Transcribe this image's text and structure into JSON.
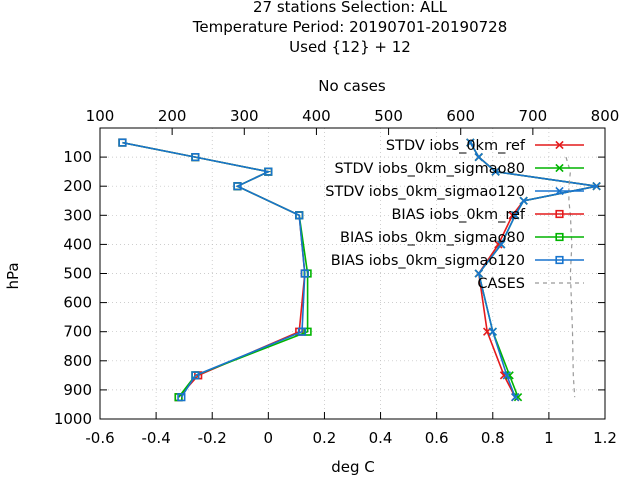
{
  "chart_data": {
    "type": "line",
    "title_lines": [
      "27 stations Selection: ALL",
      "Temperature  Period: 20190701-20190728",
      "Used {12} + 12"
    ],
    "xlabel": "deg C",
    "ylabel": "hPa",
    "x2label": "No cases",
    "xlim": [
      -0.6,
      1.2
    ],
    "ylim": [
      1000,
      0
    ],
    "x2lim": [
      100,
      800
    ],
    "x_ticks": [
      -0.6,
      -0.4,
      -0.2,
      0,
      0.2,
      0.4,
      0.6,
      0.8,
      1,
      1.2
    ],
    "x_tick_labels": [
      "-0.6",
      "-0.4",
      "-0.2",
      "0",
      "0.2",
      "0.4",
      "0.6",
      "0.8",
      "1",
      "1.2"
    ],
    "y_ticks": [
      100,
      200,
      300,
      400,
      500,
      600,
      700,
      800,
      900,
      1000
    ],
    "y_tick_labels": [
      "100",
      "200",
      "300",
      "400",
      "500",
      "600",
      "700",
      "800",
      "900",
      "1000"
    ],
    "x2_ticks": [
      100,
      200,
      300,
      400,
      500,
      600,
      700,
      800
    ],
    "x2_tick_labels": [
      "100",
      "200",
      "300",
      "400",
      "500",
      "600",
      "700",
      "800"
    ],
    "grid": true,
    "legend_position": "top-right",
    "y": [
      50,
      100,
      150,
      200,
      250,
      300,
      400,
      500,
      700,
      850,
      925
    ],
    "series": [
      {
        "name": "STDV iobs_0km_ref",
        "color": "#e41a1c",
        "marker": "x",
        "axis": "x",
        "values": [
          0.72,
          0.75,
          0.81,
          1.17,
          0.91,
          0.87,
          0.82,
          0.75,
          0.78,
          0.84,
          0.88
        ]
      },
      {
        "name": "STDV iobs_0km_sigmao80",
        "color": "#00b400",
        "marker": "x",
        "axis": "x",
        "values": [
          0.72,
          0.75,
          0.81,
          1.17,
          0.91,
          0.88,
          0.83,
          0.75,
          0.8,
          0.86,
          0.89
        ]
      },
      {
        "name": "STDV iobs_0km_sigmao120",
        "color": "#1874cd",
        "marker": "x",
        "axis": "x",
        "values": [
          0.72,
          0.75,
          0.81,
          1.17,
          0.91,
          0.88,
          0.83,
          0.75,
          0.8,
          0.85,
          0.88
        ]
      },
      {
        "name": "BIAS iobs_0km_ref",
        "color": "#e41a1c",
        "marker": "square",
        "axis": "x",
        "values": [
          -0.52,
          -0.26,
          0.0,
          -0.11,
          null,
          0.11,
          null,
          0.13,
          0.11,
          -0.25,
          -0.32
        ]
      },
      {
        "name": "BIAS iobs_0km_sigmao80",
        "color": "#00b400",
        "marker": "square",
        "axis": "x",
        "values": [
          -0.52,
          -0.26,
          0.0,
          -0.11,
          null,
          0.11,
          null,
          0.14,
          0.14,
          -0.26,
          -0.32
        ]
      },
      {
        "name": "BIAS iobs_0km_sigmao120",
        "color": "#1874cd",
        "marker": "square",
        "axis": "x",
        "values": [
          -0.52,
          -0.26,
          0.0,
          -0.11,
          null,
          0.11,
          null,
          0.13,
          0.12,
          -0.26,
          -0.31
        ]
      },
      {
        "name": "CASES",
        "color": "#999999",
        "marker": "none",
        "dash": true,
        "axis": "x2",
        "values": [
          null,
          746,
          752,
          750,
          750,
          752,
          754,
          752,
          755,
          756,
          758
        ]
      }
    ]
  }
}
